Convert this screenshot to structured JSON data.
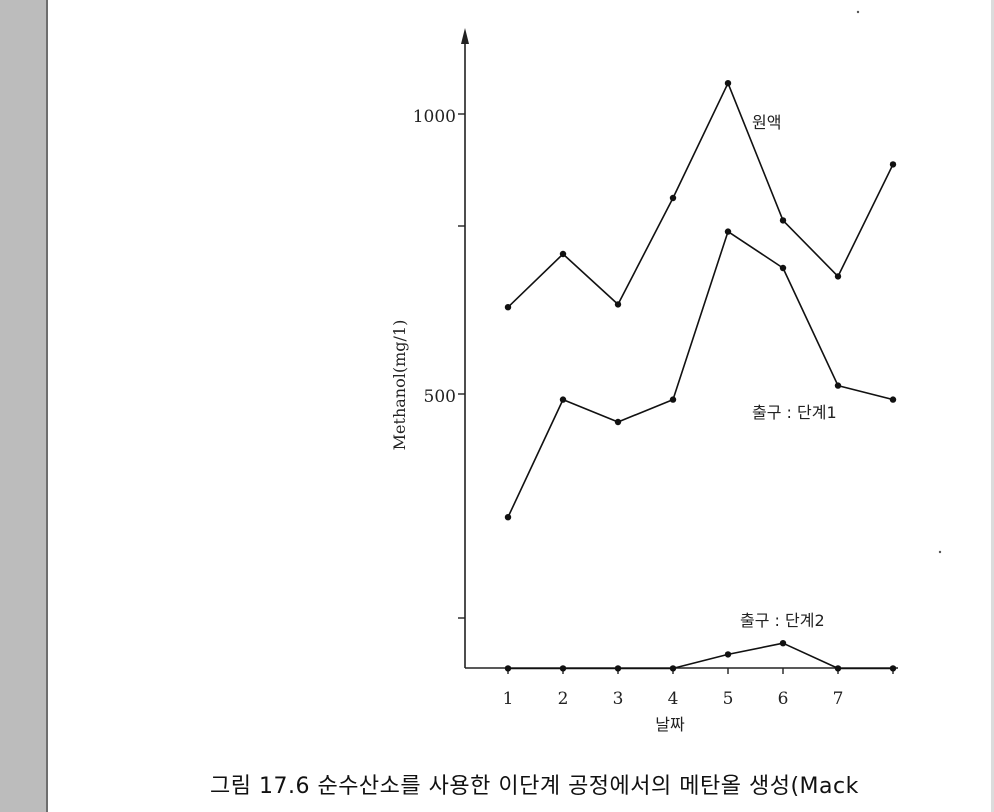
{
  "chart_data": {
    "type": "line",
    "x": [
      1,
      2,
      3,
      4,
      5,
      6,
      7,
      8
    ],
    "x_tick_labels": [
      "1",
      "2",
      "3",
      "4",
      "5",
      "6",
      "7"
    ],
    "y_tick_labels": [
      "1000",
      "500"
    ],
    "ylim": [
      0,
      1120
    ],
    "ylabel": "Methanol(mg/1)",
    "xlabel": "날짜",
    "series": [
      {
        "name": "원액",
        "values": [
          655,
          750,
          660,
          850,
          1055,
          810,
          710,
          910
        ]
      },
      {
        "name": "출구 : 단계1",
        "values": [
          280,
          490,
          450,
          490,
          790,
          725,
          515,
          490
        ]
      },
      {
        "name": "출구 : 단계2",
        "values": [
          10,
          10,
          10,
          10,
          35,
          55,
          10,
          10
        ]
      }
    ]
  },
  "caption": "그림 17.6  순수산소를 사용한 이단계 공정에서의 메탄올 생성(Mack"
}
